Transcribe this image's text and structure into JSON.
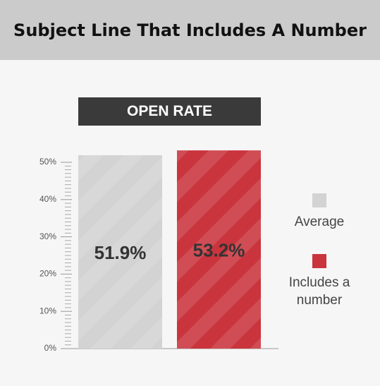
{
  "chart_data": {
    "type": "bar",
    "title": "Subject Line That Includes A Number",
    "subtitle": "OPEN RATE",
    "categories": [
      "Average",
      "Includes a number"
    ],
    "values": [
      51.9,
      53.2
    ],
    "value_labels": [
      "51.9%",
      "53.2%"
    ],
    "colors": [
      "#d3d3d3",
      "#c9343d"
    ],
    "ylim": [
      0,
      50
    ],
    "yticks": [
      {
        "value": 0,
        "label": "0%"
      },
      {
        "value": 10,
        "label": "10%"
      },
      {
        "value": 20,
        "label": "20%"
      },
      {
        "value": 30,
        "label": "30%"
      },
      {
        "value": 40,
        "label": "40%"
      },
      {
        "value": 50,
        "label": "50%"
      }
    ]
  }
}
